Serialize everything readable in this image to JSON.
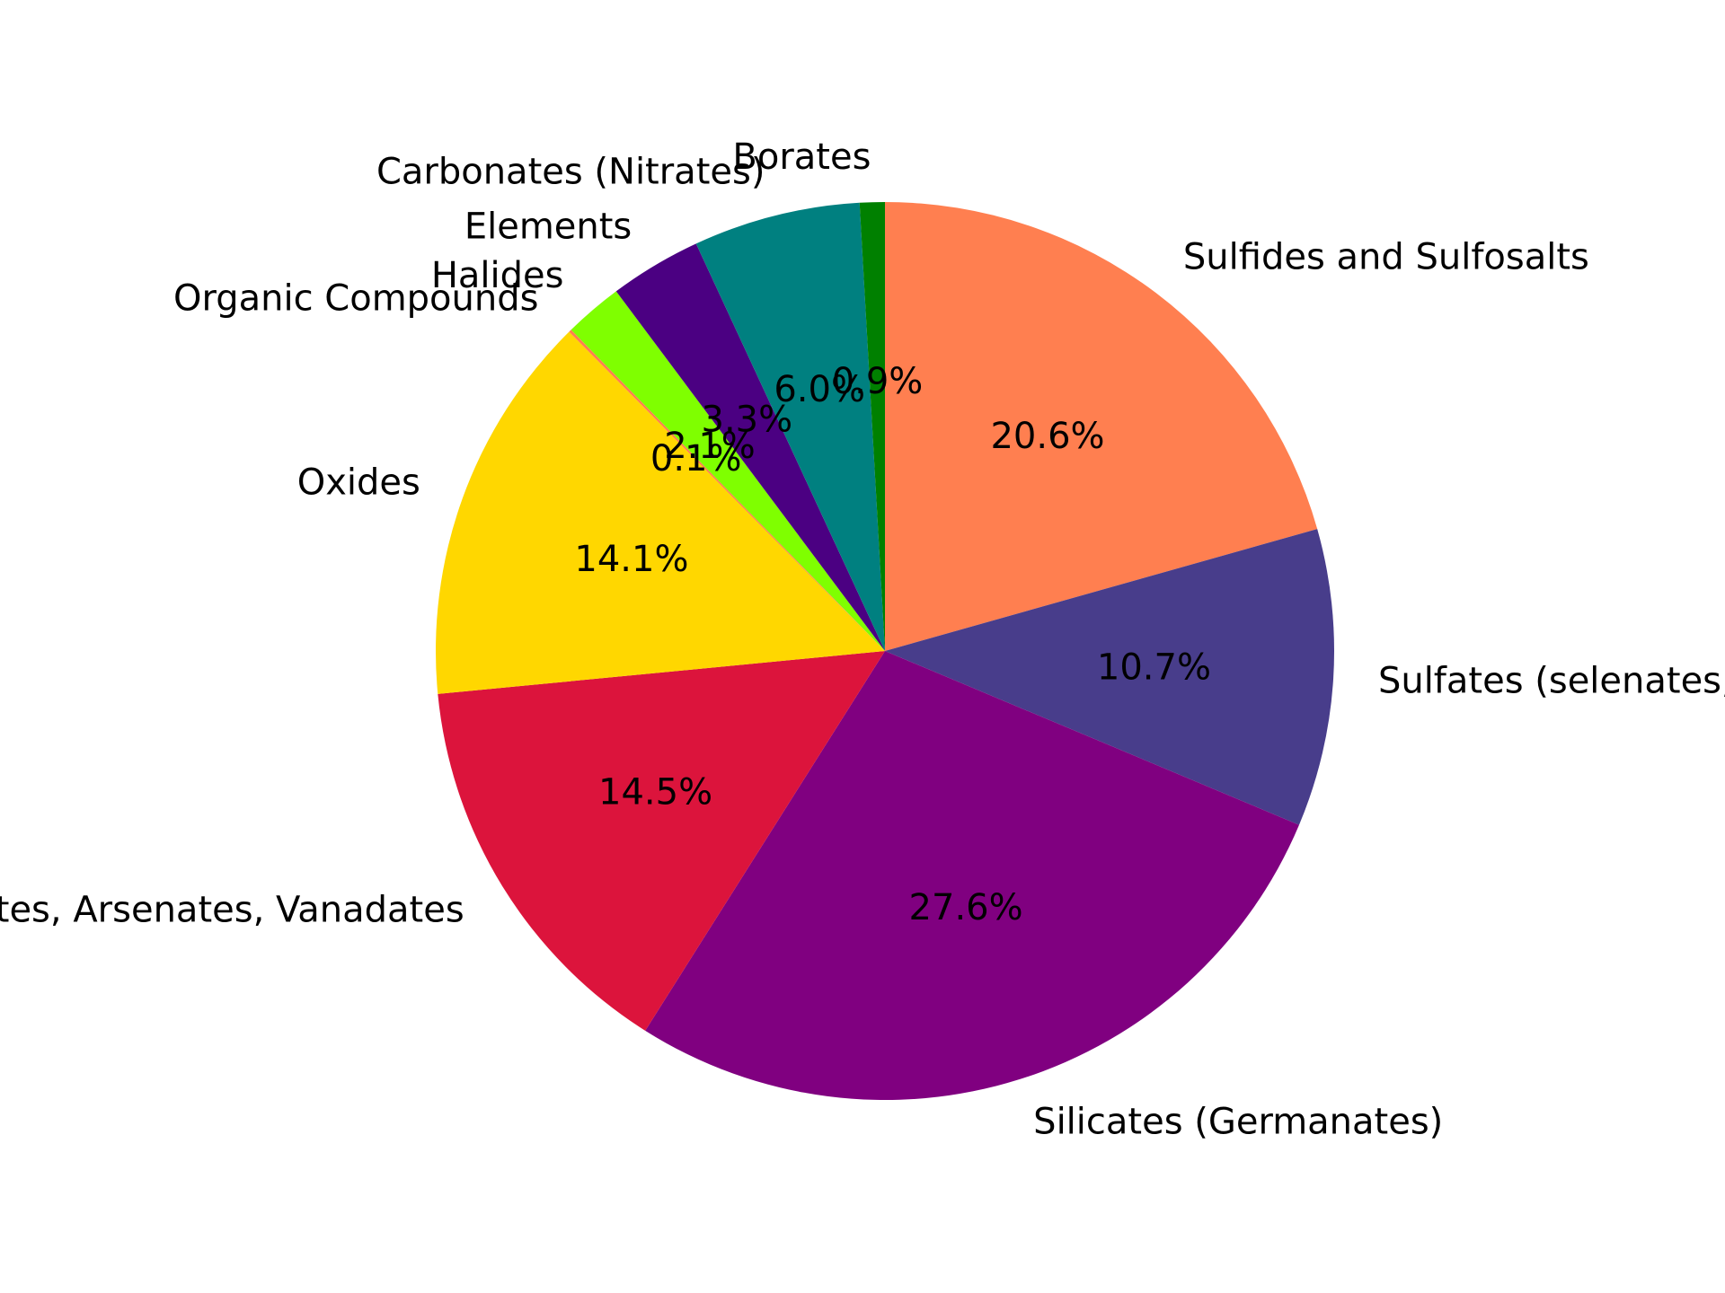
{
  "chart_data": {
    "type": "pie",
    "start_angle_deg": 90,
    "direction": "clockwise",
    "slices": [
      {
        "label": "Sulfides and Sulfosalts",
        "value": 20.6,
        "pct_label": "20.6%",
        "color": "#FF7F50"
      },
      {
        "label": "Sulfates (selenates, tellurates)",
        "value": 10.7,
        "pct_label": "10.7%",
        "color": "#483D8B"
      },
      {
        "label": "Silicates (Germanates)",
        "value": 27.6,
        "pct_label": "27.6%",
        "color": "#800080"
      },
      {
        "label": "Phosphates, Arsenates, Vanadates",
        "value": 14.5,
        "pct_label": "14.5%",
        "color": "#DC143C"
      },
      {
        "label": "Oxides",
        "value": 14.1,
        "pct_label": "14.1%",
        "color": "#FFD700"
      },
      {
        "label": "Organic Compounds",
        "value": 0.1,
        "pct_label": "0.1%",
        "color": "#FF7F50"
      },
      {
        "label": "Halides",
        "value": 2.1,
        "pct_label": "2.1%",
        "color": "#7FFF00"
      },
      {
        "label": "Elements",
        "value": 3.3,
        "pct_label": "3.3%",
        "color": "#4B0082"
      },
      {
        "label": "Carbonates (Nitrates)",
        "value": 6.0,
        "pct_label": "6.0%",
        "color": "#008080"
      },
      {
        "label": "Borates",
        "value": 0.9,
        "pct_label": "0.9%",
        "color": "#008000"
      }
    ]
  }
}
